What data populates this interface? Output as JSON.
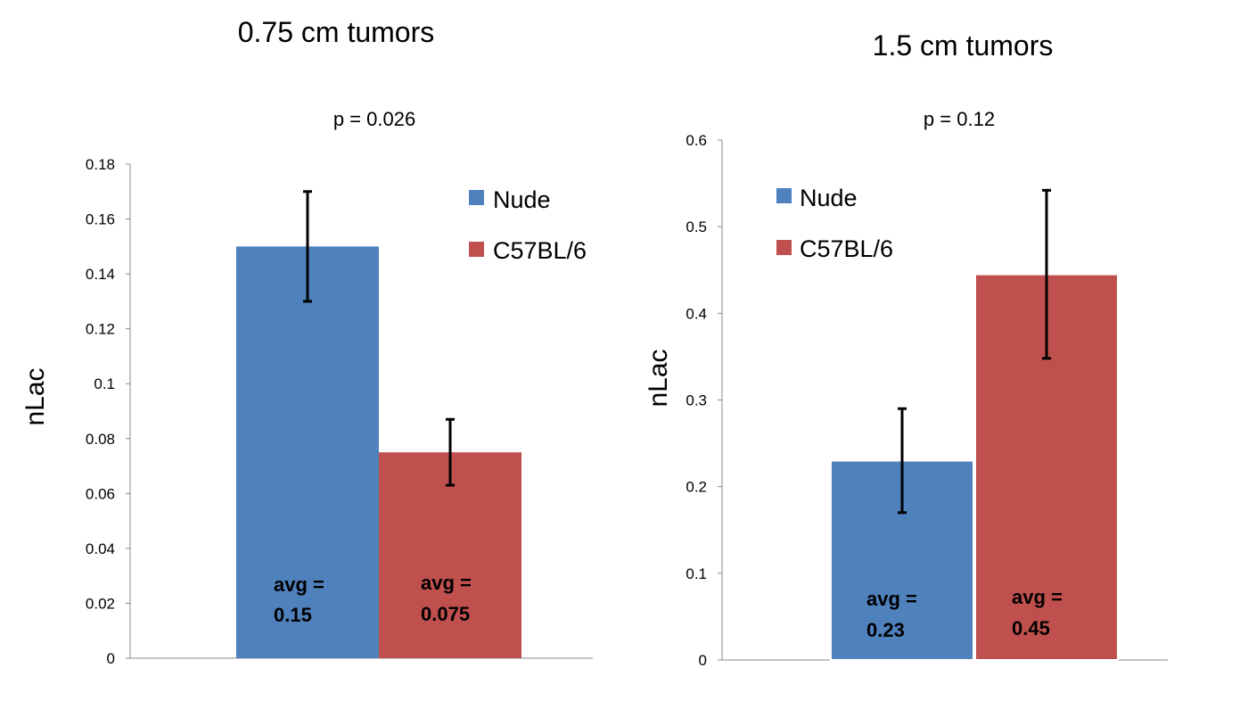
{
  "colors": {
    "nude": "#4F81BD",
    "c57": "#C0504D",
    "axis": "#888888",
    "error_bar": "#000000"
  },
  "chart_data": [
    {
      "type": "bar",
      "title": "0.75 cm tumors",
      "subtitle": "p = 0.026",
      "ylabel": "nLac",
      "xlabel": "",
      "ylim": [
        0,
        0.18
      ],
      "yticks": [
        0,
        0.02,
        0.04,
        0.06,
        0.08,
        0.1,
        0.12,
        0.14,
        0.16,
        0.18
      ],
      "ytick_labels": [
        "0",
        "0.02",
        "0.04",
        "0.06",
        "0.08",
        "0.1",
        "0.12",
        "0.14",
        "0.16",
        "0.18"
      ],
      "legend_placement": "top-right",
      "series": [
        {
          "name": "Nude",
          "value": 0.15,
          "error": 0.02,
          "label_line1": "avg =",
          "label_line2": "0.15"
        },
        {
          "name": "C57BL/6",
          "value": 0.075,
          "error": 0.012,
          "label_line1": "avg =",
          "label_line2": "0.075"
        }
      ]
    },
    {
      "type": "bar",
      "title": "1.5 cm tumors",
      "subtitle": "p = 0.12",
      "ylabel": "nLac",
      "xlabel": "",
      "ylim": [
        0,
        0.6
      ],
      "yticks": [
        0,
        0.1,
        0.2,
        0.3,
        0.4,
        0.5,
        0.6
      ],
      "ytick_labels": [
        "0",
        "0.1",
        "0.2",
        "0.3",
        "0.4",
        "0.5",
        "0.6"
      ],
      "legend_placement": "top-left",
      "series": [
        {
          "name": "Nude",
          "value": 0.23,
          "error": 0.06,
          "label_line1": "avg =",
          "label_line2": "0.23"
        },
        {
          "name": "C57BL/6",
          "value": 0.445,
          "error": 0.097,
          "label_line1": "avg =",
          "label_line2": "0.45"
        }
      ]
    }
  ]
}
